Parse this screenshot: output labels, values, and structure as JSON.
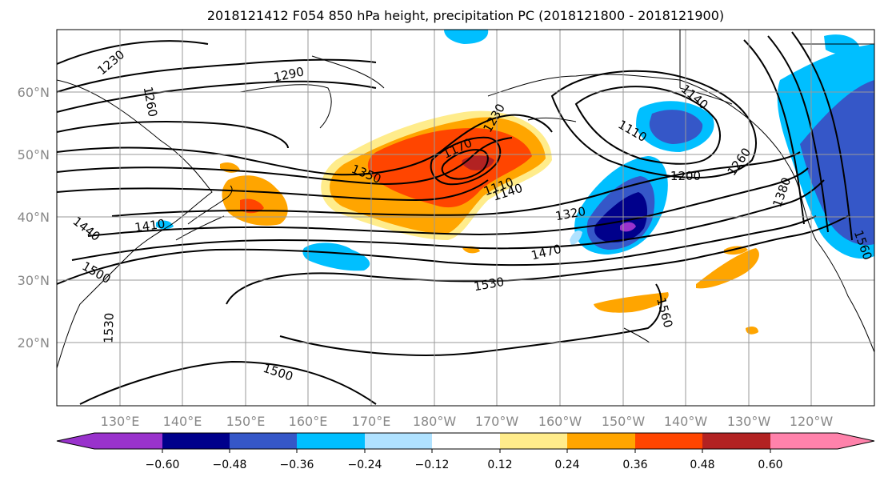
{
  "title": "2018121412 F054 850 hPa height, precipitation PC (2018121800 - 2018121900)",
  "map": {
    "lat_labels": [
      "60°N",
      "50°N",
      "40°N",
      "30°N",
      "20°N"
    ],
    "lon_labels": [
      "130°E",
      "140°E",
      "150°E",
      "160°E",
      "170°E",
      "180°W",
      "170°W",
      "160°W",
      "150°W",
      "140°W",
      "130°W",
      "120°W"
    ],
    "contour_labels": [
      "1230",
      "1290",
      "1260",
      "1350",
      "1230",
      "1170",
      "1110",
      "1140",
      "1110",
      "1140",
      "1200",
      "1260",
      "1380",
      "1410",
      "1440",
      "1320",
      "1470",
      "1500",
      "1530",
      "1560",
      "1530",
      "1500",
      "1560"
    ]
  },
  "colorbar": {
    "ticks": [
      "−0.60",
      "−0.48",
      "−0.36",
      "−0.24",
      "−0.12",
      "0.12",
      "0.24",
      "0.36",
      "0.48",
      "0.60"
    ],
    "colors": [
      "#9932cc",
      "#00008b",
      "#3557c8",
      "#00bfff",
      "#b0e2ff",
      "#ffffff",
      "#ffec8b",
      "#ffa500",
      "#ff4500",
      "#b22222",
      "#ff82ab"
    ]
  },
  "field_colors": {
    "pos_light": "#ffec8b",
    "pos_mid": "#ffa500",
    "pos_strong": "#ff4500",
    "pos_max": "#b22222",
    "neg_light": "#b0e2ff",
    "neg_mid": "#00bfff",
    "neg_strong": "#3557c8",
    "neg_max": "#00008b",
    "neg_extreme": "#9932cc"
  }
}
